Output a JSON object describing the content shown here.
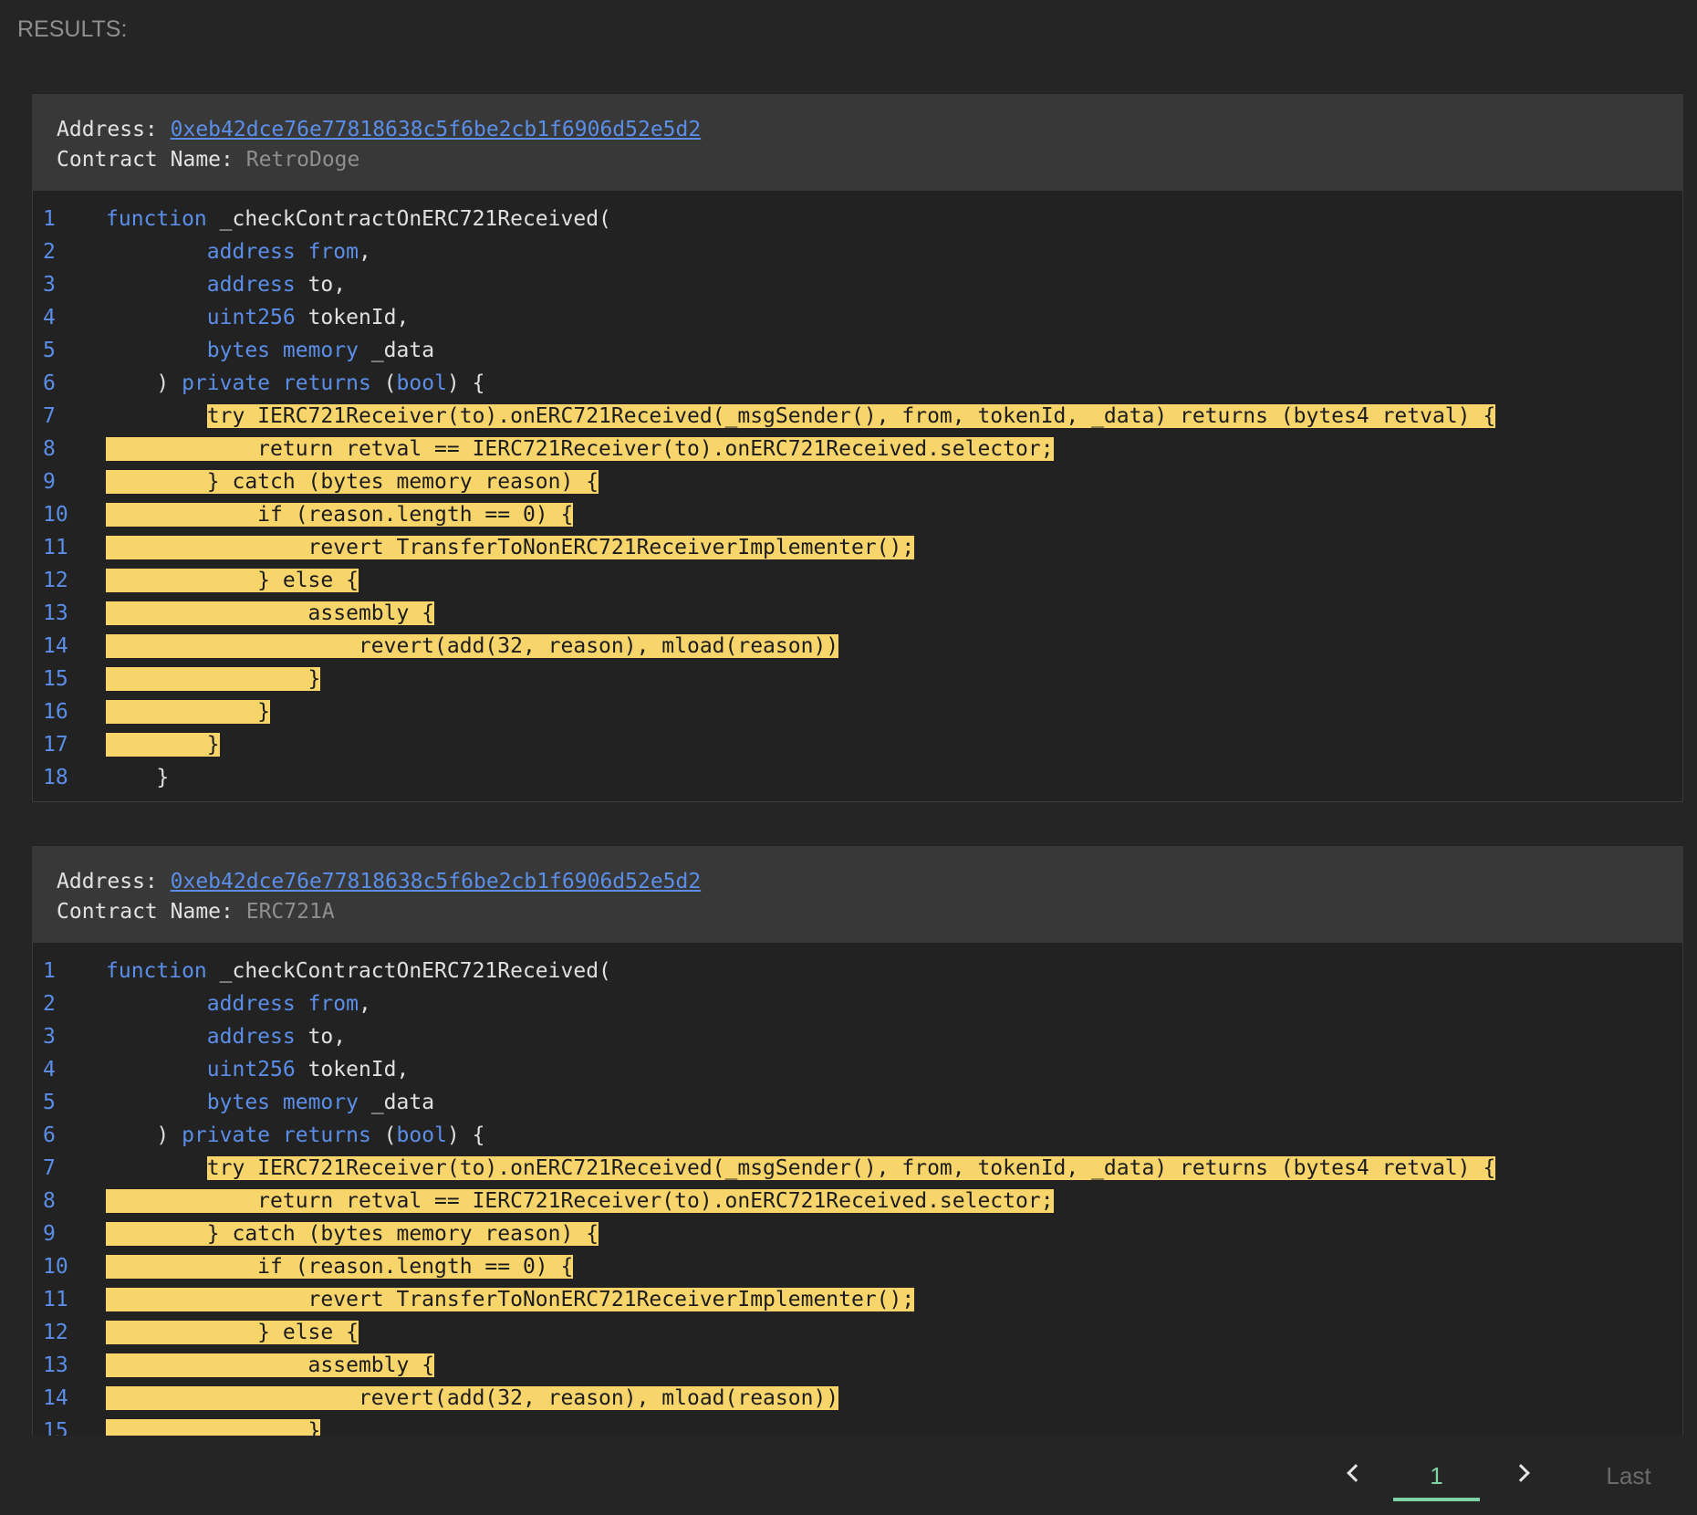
{
  "results_label": "RESULTS:",
  "results": [
    {
      "address_label": "Address:",
      "address": "0xeb42dce76e77818638c5f6be2cb1f6906d52e5d2",
      "contract_label": "Contract Name:",
      "contract_name": "RetroDoge",
      "lines": [
        {
          "n": "1",
          "indent": "",
          "hl_pad": "",
          "parts": [
            [
              "kw",
              "function"
            ],
            [
              "pl",
              " _checkContractOnERC721Received("
            ]
          ]
        },
        {
          "n": "2",
          "indent": "        ",
          "hl_pad": "",
          "parts": [
            [
              "kw",
              "address"
            ],
            [
              "pl",
              " "
            ],
            [
              "kw",
              "from"
            ],
            [
              "pl",
              ","
            ]
          ]
        },
        {
          "n": "3",
          "indent": "        ",
          "hl_pad": "",
          "parts": [
            [
              "kw",
              "address"
            ],
            [
              "pl",
              " to,"
            ]
          ]
        },
        {
          "n": "4",
          "indent": "        ",
          "hl_pad": "",
          "parts": [
            [
              "kw",
              "uint256"
            ],
            [
              "pl",
              " tokenId,"
            ]
          ]
        },
        {
          "n": "5",
          "indent": "        ",
          "hl_pad": "",
          "parts": [
            [
              "kw",
              "bytes"
            ],
            [
              "pl",
              " "
            ],
            [
              "kw",
              "memory"
            ],
            [
              "pl",
              " _data"
            ]
          ]
        },
        {
          "n": "6",
          "indent": "    ",
          "hl_pad": "",
          "parts": [
            [
              "pl",
              ") "
            ],
            [
              "kw",
              "private"
            ],
            [
              "pl",
              " "
            ],
            [
              "kw",
              "returns"
            ],
            [
              "pl",
              " ("
            ],
            [
              "kw",
              "bool"
            ],
            [
              "pl",
              ") {"
            ]
          ]
        },
        {
          "n": "7",
          "indent": "        ",
          "hl_pad": "",
          "hl": "try IERC721Receiver(to).onERC721Received(_msgSender(), from, tokenId, _data) returns (bytes4 retval) {"
        },
        {
          "n": "8",
          "indent": "",
          "hl_pad": "            ",
          "hl": "return retval == IERC721Receiver(to).onERC721Received.selector;"
        },
        {
          "n": "9",
          "indent": "",
          "hl_pad": "        ",
          "hl": "} catch (bytes memory reason) {"
        },
        {
          "n": "10",
          "indent": "",
          "hl_pad": "            ",
          "hl": "if (reason.length == 0) {"
        },
        {
          "n": "11",
          "indent": "",
          "hl_pad": "                ",
          "hl": "revert TransferToNonERC721ReceiverImplementer();"
        },
        {
          "n": "12",
          "indent": "",
          "hl_pad": "            ",
          "hl": "} else {"
        },
        {
          "n": "13",
          "indent": "",
          "hl_pad": "                ",
          "hl": "assembly {"
        },
        {
          "n": "14",
          "indent": "",
          "hl_pad": "                    ",
          "hl": "revert(add(32, reason), mload(reason))"
        },
        {
          "n": "15",
          "indent": "",
          "hl_pad": "                ",
          "hl": "}"
        },
        {
          "n": "16",
          "indent": "",
          "hl_pad": "            ",
          "hl": "}"
        },
        {
          "n": "17",
          "indent": "",
          "hl_pad": "        ",
          "hl": "}"
        },
        {
          "n": "18",
          "indent": "    ",
          "hl_pad": "",
          "parts": [
            [
              "pl",
              "}"
            ]
          ]
        }
      ]
    },
    {
      "address_label": "Address:",
      "address": "0xeb42dce76e77818638c5f6be2cb1f6906d52e5d2",
      "contract_label": "Contract Name:",
      "contract_name": "ERC721A",
      "lines": [
        {
          "n": "1",
          "indent": "",
          "hl_pad": "",
          "parts": [
            [
              "kw",
              "function"
            ],
            [
              "pl",
              " _checkContractOnERC721Received("
            ]
          ]
        },
        {
          "n": "2",
          "indent": "        ",
          "hl_pad": "",
          "parts": [
            [
              "kw",
              "address"
            ],
            [
              "pl",
              " "
            ],
            [
              "kw",
              "from"
            ],
            [
              "pl",
              ","
            ]
          ]
        },
        {
          "n": "3",
          "indent": "        ",
          "hl_pad": "",
          "parts": [
            [
              "kw",
              "address"
            ],
            [
              "pl",
              " to,"
            ]
          ]
        },
        {
          "n": "4",
          "indent": "        ",
          "hl_pad": "",
          "parts": [
            [
              "kw",
              "uint256"
            ],
            [
              "pl",
              " tokenId,"
            ]
          ]
        },
        {
          "n": "5",
          "indent": "        ",
          "hl_pad": "",
          "parts": [
            [
              "kw",
              "bytes"
            ],
            [
              "pl",
              " "
            ],
            [
              "kw",
              "memory"
            ],
            [
              "pl",
              " _data"
            ]
          ]
        },
        {
          "n": "6",
          "indent": "    ",
          "hl_pad": "",
          "parts": [
            [
              "pl",
              ") "
            ],
            [
              "kw",
              "private"
            ],
            [
              "pl",
              " "
            ],
            [
              "kw",
              "returns"
            ],
            [
              "pl",
              " ("
            ],
            [
              "kw",
              "bool"
            ],
            [
              "pl",
              ") {"
            ]
          ]
        },
        {
          "n": "7",
          "indent": "        ",
          "hl_pad": "",
          "hl": "try IERC721Receiver(to).onERC721Received(_msgSender(), from, tokenId, _data) returns (bytes4 retval) {"
        },
        {
          "n": "8",
          "indent": "",
          "hl_pad": "            ",
          "hl": "return retval == IERC721Receiver(to).onERC721Received.selector;"
        },
        {
          "n": "9",
          "indent": "",
          "hl_pad": "        ",
          "hl": "} catch (bytes memory reason) {"
        },
        {
          "n": "10",
          "indent": "",
          "hl_pad": "            ",
          "hl": "if (reason.length == 0) {"
        },
        {
          "n": "11",
          "indent": "",
          "hl_pad": "                ",
          "hl": "revert TransferToNonERC721ReceiverImplementer();"
        },
        {
          "n": "12",
          "indent": "",
          "hl_pad": "            ",
          "hl": "} else {"
        },
        {
          "n": "13",
          "indent": "",
          "hl_pad": "                ",
          "hl": "assembly {"
        },
        {
          "n": "14",
          "indent": "",
          "hl_pad": "                    ",
          "hl": "revert(add(32, reason), mload(reason))"
        },
        {
          "n": "15",
          "indent": "",
          "hl_pad": "                ",
          "hl": "}"
        }
      ]
    }
  ],
  "pagination": {
    "prev_icon": "chevron-left-icon",
    "current_page": "1",
    "next_icon": "chevron-right-icon",
    "last_label": "Last",
    "active_color": "#7dd3a3"
  },
  "colors": {
    "highlight": "#f8d56b",
    "keyword": "#5b8ee8",
    "link": "#5b8ee8",
    "background": "#252525"
  }
}
